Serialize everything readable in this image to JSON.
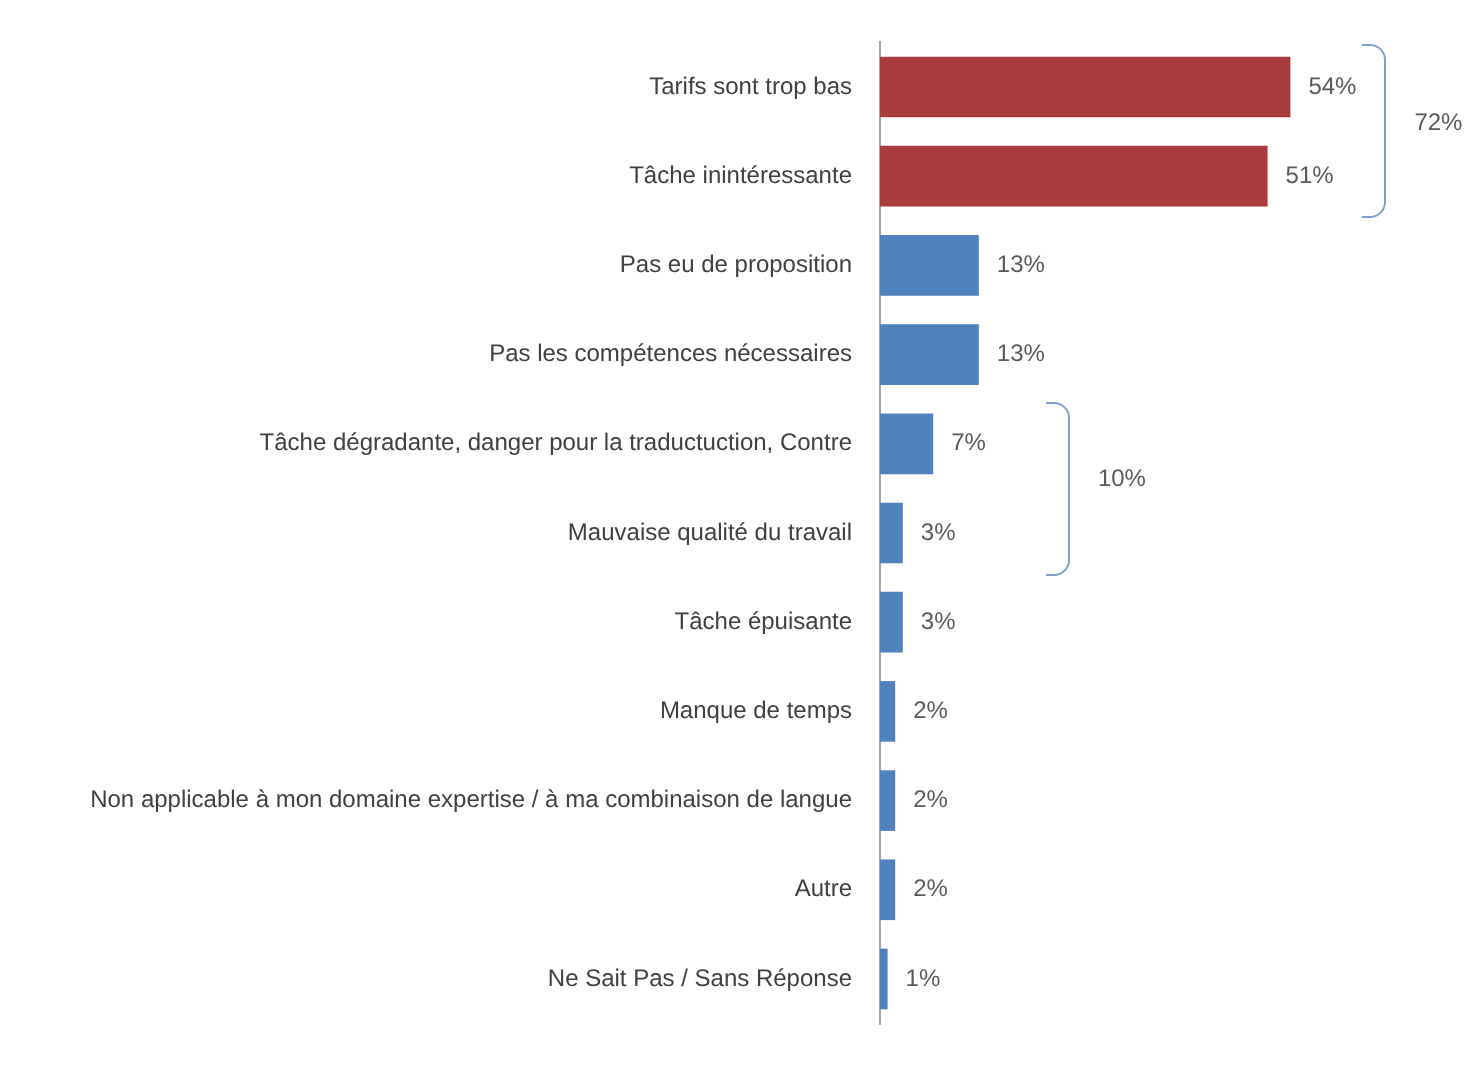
{
  "chart_data": {
    "type": "bar",
    "orientation": "horizontal",
    "categories": [
      "Tarifs sont trop bas",
      "Tâche inintéressante",
      "Pas eu de proposition",
      "Pas les compétences nécessaires",
      "Tâche dégradante, danger pour la traductuction, Contre",
      "Mauvaise qualité du travail",
      "Tâche épuisante",
      "Manque de temps",
      "Non applicable à mon domaine expertise / à ma combinaison de langue",
      "Autre",
      "Ne Sait Pas / Sans Réponse"
    ],
    "values": [
      54,
      51,
      13,
      13,
      7,
      3,
      3,
      2,
      2,
      2,
      1
    ],
    "colors": [
      "#a83c3c",
      "#a83c3c",
      "#4f81bd",
      "#4f81bd",
      "#4f81bd",
      "#4f81bd",
      "#4f81bd",
      "#4f81bd",
      "#4f81bd",
      "#4f81bd",
      "#4f81bd"
    ],
    "value_labels": [
      "54%",
      "51%",
      "13%",
      "13%",
      "7%",
      "3%",
      "3%",
      "2%",
      "2%",
      "2%",
      "1%"
    ],
    "annotations": [
      "72%",
      "10%"
    ],
    "grid": false,
    "legend": false
  }
}
